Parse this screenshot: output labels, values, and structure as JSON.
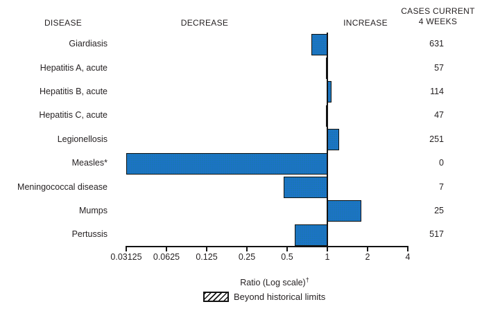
{
  "header": {
    "disease": "DISEASE",
    "decrease": "DECREASE",
    "increase": "INCREASE",
    "cases_line1": "CASES CURRENT",
    "cases_line2": "4 WEEKS"
  },
  "chart_data": {
    "type": "bar",
    "orientation": "horizontal",
    "scale": "log2",
    "baseline": 1,
    "title": "",
    "xlabel": "Ratio (Log scale)†",
    "xlim": [
      0.03125,
      4
    ],
    "x_ticks": [
      0.03125,
      0.0625,
      0.125,
      0.25,
      0.5,
      1,
      2,
      4
    ],
    "x_tick_labels": [
      "0.03125",
      "0.0625",
      "0.125",
      "0.25",
      "0.5",
      "1",
      "2",
      "4"
    ],
    "categories": [
      "Giardiasis",
      "Hepatitis A, acute",
      "Hepatitis B, acute",
      "Hepatitis C, acute",
      "Legionellosis",
      "Measles*",
      "Meningococcal disease",
      "Mumps",
      "Pertussis"
    ],
    "series": [
      {
        "name": "Ratio (Log scale)",
        "values": [
          0.76,
          0.97,
          1.07,
          0.97,
          1.23,
          0.031,
          0.47,
          1.8,
          0.57
        ]
      }
    ],
    "cases_current_4_weeks": [
      631,
      57,
      114,
      47,
      251,
      0,
      7,
      25,
      517
    ],
    "bar_color": "#1c72c8",
    "bar_border_color": "#121212",
    "grid": false,
    "legend_position": "bottom",
    "legend": [
      {
        "label": "Beyond historical limits",
        "pattern": "diagonal-hatch"
      }
    ]
  },
  "axis": {
    "title": "Ratio (Log scale)",
    "title_sup": "†"
  },
  "legend": {
    "label": "Beyond historical limits"
  }
}
